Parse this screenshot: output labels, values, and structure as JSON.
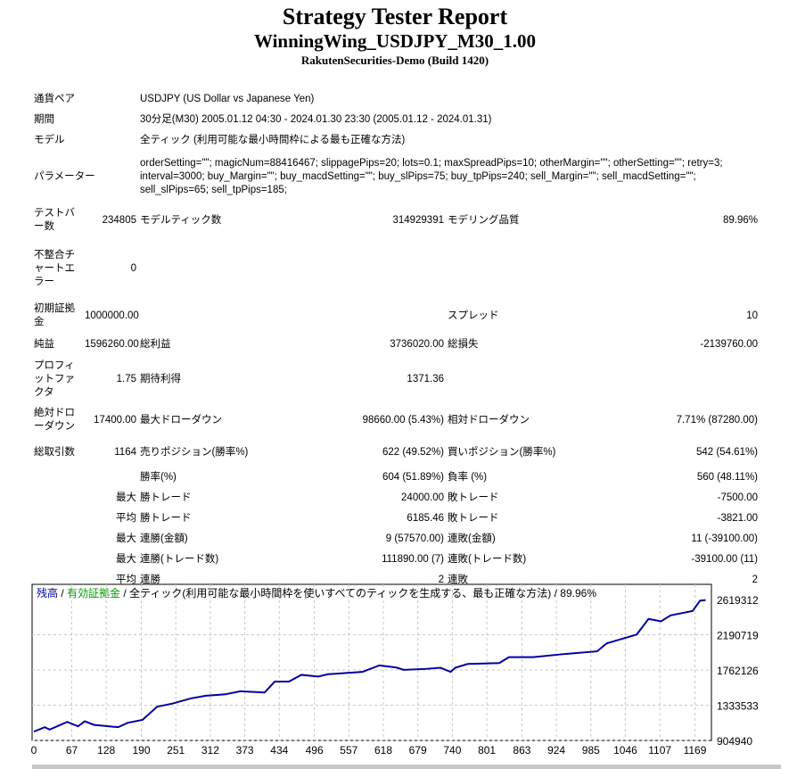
{
  "header": {
    "title": "Strategy Tester Report",
    "expert": "WinningWing_USDJPY_M30_1.00",
    "server": "RakutenSecurities-Demo (Build 1420)"
  },
  "info": [
    {
      "label": "通貨ペア",
      "value": "USDJPY (US Dollar vs Japanese Yen)"
    },
    {
      "label": "期間",
      "value": "30分足(M30) 2005.01.12 04:30 - 2024.01.30 23:30 (2005.01.12 - 2024.01.31)"
    },
    {
      "label": "モデル",
      "value": "全ティック (利用可能な最小時間枠による最も正確な方法)"
    },
    {
      "label": "パラメーター",
      "value": "orderSetting=\"\"; magicNum=88416467; slippagePips=20; lots=0.1; maxSpreadPips=10; otherMargin=\"\"; otherSetting=\"\"; retry=3; interval=3000; buy_Margin=\"\"; buy_macdSetting=\"\"; buy_slPips=75; buy_tpPips=240; sell_Margin=\"\"; sell_macdSetting=\"\"; sell_slPips=65; sell_tpPips=185;"
    }
  ],
  "stats": {
    "bars_label": "テストバー数",
    "bars": "234805",
    "ticks_label": "モデルティック数",
    "ticks": "314929391",
    "quality_label": "モデリング品質",
    "quality": "89.96%",
    "mismatch_label": "不整合チャートエラー",
    "mismatch": "0",
    "deposit_label": "初期証拠金",
    "deposit": "1000000.00",
    "spread_label": "スプレッド",
    "spread": "10",
    "net_label": "純益",
    "net": "1596260.00",
    "gross_profit_label": "総利益",
    "gross_profit": "3736020.00",
    "gross_loss_label": "総損失",
    "gross_loss": "-2139760.00",
    "pf_label": "プロフィットファクタ",
    "pf": "1.75",
    "expected_label": "期待利得",
    "expected": "1371.36",
    "abs_dd_label": "絶対ドローダウン",
    "abs_dd": "17400.00",
    "max_dd_label": "最大ドローダウン",
    "max_dd": "98660.00 (5.43%)",
    "rel_dd_label": "相対ドローダウン",
    "rel_dd": "7.71% (87280.00)",
    "trades_label": "総取引数",
    "trades": "1164",
    "short_label": "売りポジション(勝率%)",
    "short": "622 (49.52%)",
    "long_label": "買いポジション(勝率%)",
    "long": "542 (54.61%)",
    "win_label": "勝率(%)",
    "win": "604 (51.89%)",
    "loss_label": "負率 (%)",
    "loss": "560 (48.11%)",
    "max_label": "最大",
    "avg_label": "平均",
    "largest_win_label": "勝トレード",
    "largest_win": "24000.00",
    "largest_loss_label": "敗トレード",
    "largest_loss": "-7500.00",
    "avg_win_label": "勝トレード",
    "avg_win": "6185.46",
    "avg_loss_label": "敗トレード",
    "avg_loss": "-3821.00",
    "cons_wins_label": "連勝(金額)",
    "cons_wins": "9 (57570.00)",
    "cons_losses_label": "連敗(金額)",
    "cons_losses": "11 (-39100.00)",
    "cons_profit_label": "連勝(トレード数)",
    "cons_profit": "111890.00 (7)",
    "cons_loss_label": "連敗(トレード数)",
    "cons_loss": "-39100.00 (11)",
    "avg_cons_wins_label": "連勝",
    "avg_cons_wins": "2",
    "avg_cons_losses_label": "連敗",
    "avg_cons_losses": "2"
  },
  "chart_data": {
    "type": "line",
    "legend": {
      "balance": "残高",
      "sep1": " / ",
      "equity": "有効証拠金",
      "sep2": " / ",
      "model": "全ティック(利用可能な最小時間枠を使いすべてのティックを生成する、最も正確な方法) / 89.96%"
    },
    "colors": {
      "balance": "#0000a0",
      "equity": "#00a000"
    },
    "x_ticks": [
      "0",
      "67",
      "128",
      "190",
      "251",
      "312",
      "373",
      "434",
      "496",
      "557",
      "618",
      "679",
      "740",
      "801",
      "863",
      "924",
      "985",
      "1046",
      "1107",
      "1169"
    ],
    "y_ticks": [
      "2619312",
      "2190719",
      "1762126",
      "1333533",
      "904940"
    ],
    "xlim": [
      0,
      1195
    ],
    "ylim": [
      904940,
      2690000
    ],
    "series": [
      {
        "name": "残高",
        "x": [
          0,
          19,
          28,
          59,
          78,
          90,
          106,
          149,
          166,
          192,
          218,
          244,
          278,
          304,
          339,
          365,
          408,
          426,
          451,
          473,
          503,
          520,
          581,
          611,
          641,
          654,
          693,
          719,
          737,
          745,
          767,
          823,
          840,
          883,
          935,
          996,
          1013,
          1066,
          1087,
          1109,
          1126,
          1165,
          1178,
          1188
        ],
        "y": [
          1012000,
          1066000,
          1037000,
          1130000,
          1077000,
          1138000,
          1095000,
          1066000,
          1120000,
          1155000,
          1316000,
          1352000,
          1417000,
          1449000,
          1467000,
          1503000,
          1488000,
          1621000,
          1621000,
          1703000,
          1682000,
          1710000,
          1739000,
          1818000,
          1792000,
          1764000,
          1775000,
          1789000,
          1739000,
          1789000,
          1835000,
          1846000,
          1918000,
          1918000,
          1954000,
          1989000,
          2086000,
          2193000,
          2383000,
          2354000,
          2426000,
          2480000,
          2605000,
          2612000
        ]
      }
    ]
  }
}
